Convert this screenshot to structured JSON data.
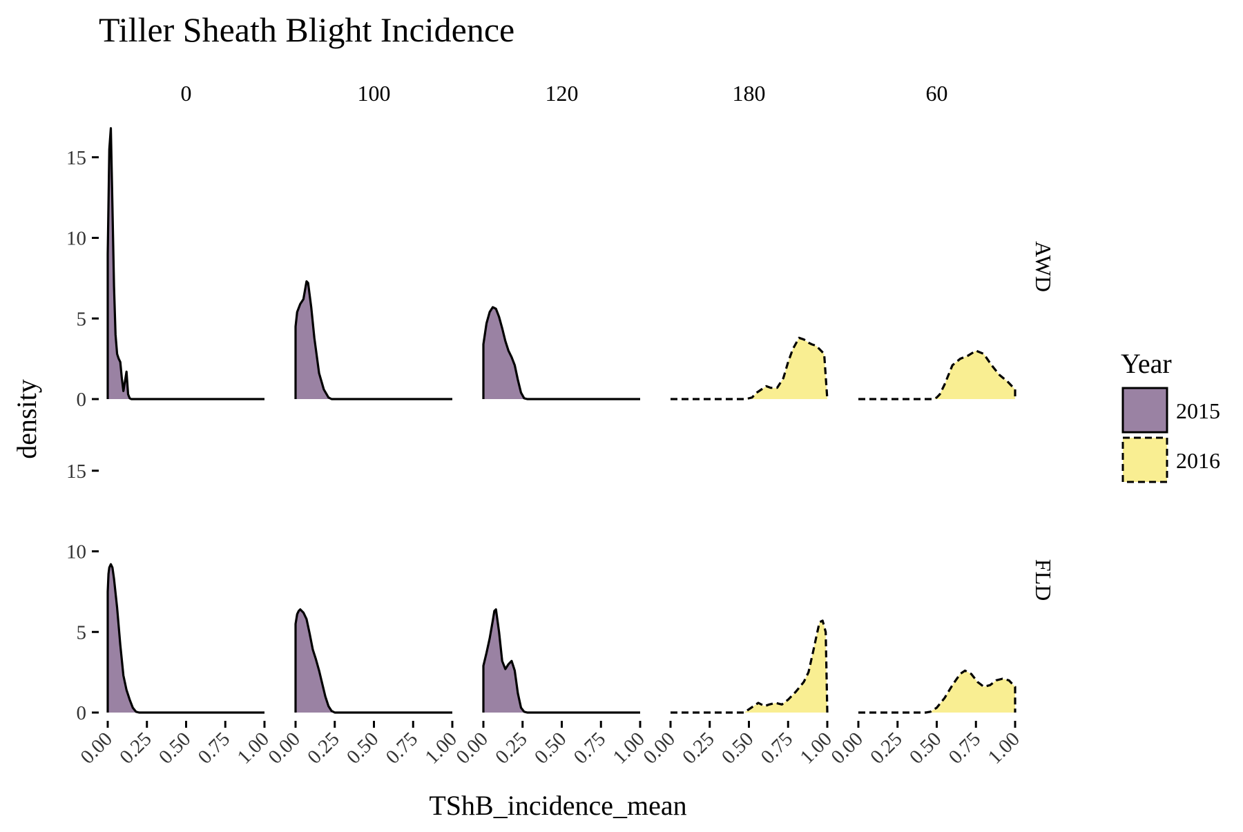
{
  "chart_data": {
    "type": "area",
    "subtype": "density",
    "title": "Tiller Sheath Blight Incidence",
    "xlabel": "TShB_incidence_mean",
    "ylabel": "density",
    "xlim": [
      0,
      1
    ],
    "x_ticks": [
      "0.00",
      "0.25",
      "0.50",
      "0.75",
      "1.00"
    ],
    "ylim": [
      0,
      17
    ],
    "y_ticks": [
      0,
      5,
      10,
      15
    ],
    "grid": false,
    "legend": {
      "title": "Year",
      "position": "right",
      "entries": [
        {
          "label": "2015",
          "color": "#9a82a3",
          "line": "solid"
        },
        {
          "label": "2016",
          "color": "#f9ee92",
          "line": "dashed"
        }
      ]
    },
    "col_facets": [
      "0",
      "100",
      "120",
      "180",
      "60"
    ],
    "row_facets": [
      "AWD",
      "FLD"
    ],
    "panels": [
      {
        "row": "AWD",
        "col": "0",
        "year": "2015",
        "x": [
          0,
          0.01,
          0.02,
          0.03,
          0.04,
          0.05,
          0.06,
          0.07,
          0.08,
          0.09,
          0.1,
          0.11,
          0.12,
          0.13,
          0.14,
          0.15,
          0.16,
          0.2,
          1.0
        ],
        "y": [
          9,
          15.5,
          16.8,
          12,
          7,
          4,
          2.8,
          2.5,
          2.3,
          1.3,
          0.5,
          1.1,
          1.7,
          0.3,
          0.05,
          0,
          0,
          0,
          0
        ]
      },
      {
        "row": "AWD",
        "col": "100",
        "year": "2015",
        "x": [
          0,
          0.01,
          0.03,
          0.05,
          0.07,
          0.08,
          0.1,
          0.12,
          0.15,
          0.18,
          0.21,
          0.23,
          0.26,
          1.0
        ],
        "y": [
          4.5,
          5.4,
          5.9,
          6.2,
          7.3,
          7.2,
          5.7,
          3.8,
          1.6,
          0.6,
          0.1,
          0,
          0,
          0
        ]
      },
      {
        "row": "AWD",
        "col": "120",
        "year": "2015",
        "x": [
          0,
          0.02,
          0.04,
          0.06,
          0.08,
          0.1,
          0.12,
          0.14,
          0.16,
          0.18,
          0.2,
          0.22,
          0.24,
          0.26,
          0.28,
          1.0
        ],
        "y": [
          3.4,
          4.7,
          5.4,
          5.7,
          5.6,
          5.1,
          4.4,
          3.6,
          3.0,
          2.6,
          2.1,
          1.2,
          0.4,
          0.05,
          0,
          0
        ]
      },
      {
        "row": "AWD",
        "col": "180",
        "year": "2016",
        "x": [
          0,
          0.48,
          0.52,
          0.55,
          0.58,
          0.61,
          0.64,
          0.68,
          0.72,
          0.75,
          0.78,
          0.82,
          0.85,
          0.88,
          0.9,
          0.93,
          0.96,
          0.98,
          1.0
        ],
        "y": [
          0,
          0,
          0.1,
          0.4,
          0.6,
          0.8,
          0.7,
          0.7,
          1.3,
          2.3,
          3.1,
          3.8,
          3.7,
          3.5,
          3.4,
          3.3,
          3.0,
          2.8,
          0
        ]
      },
      {
        "row": "AWD",
        "col": "60",
        "year": "2016",
        "x": [
          0,
          0.48,
          0.5,
          0.52,
          0.55,
          0.6,
          0.65,
          0.7,
          0.75,
          0.8,
          0.85,
          0.9,
          0.95,
          1.0
        ],
        "y": [
          0,
          0,
          0.1,
          0.3,
          0.9,
          2.1,
          2.5,
          2.7,
          3.0,
          2.8,
          2.1,
          1.5,
          1.1,
          0.6
        ]
      },
      {
        "row": "FLD",
        "col": "0",
        "year": "2015",
        "x": [
          0,
          0.005,
          0.01,
          0.02,
          0.03,
          0.04,
          0.06,
          0.08,
          0.1,
          0.12,
          0.14,
          0.16,
          0.18,
          0.2,
          1.0
        ],
        "y": [
          7.5,
          8.6,
          9.0,
          9.2,
          9.0,
          8.3,
          6.5,
          4.2,
          2.3,
          1.4,
          0.8,
          0.3,
          0.05,
          0,
          0
        ]
      },
      {
        "row": "FLD",
        "col": "100",
        "year": "2015",
        "x": [
          0,
          0.01,
          0.02,
          0.03,
          0.05,
          0.07,
          0.09,
          0.11,
          0.13,
          0.15,
          0.17,
          0.19,
          0.21,
          0.23,
          0.25,
          1.0
        ],
        "y": [
          5.5,
          6.1,
          6.3,
          6.4,
          6.2,
          5.8,
          4.9,
          3.9,
          3.3,
          2.6,
          1.8,
          1.0,
          0.4,
          0.1,
          0,
          0
        ]
      },
      {
        "row": "FLD",
        "col": "120",
        "year": "2015",
        "x": [
          0,
          0.02,
          0.04,
          0.06,
          0.07,
          0.08,
          0.1,
          0.12,
          0.14,
          0.16,
          0.18,
          0.2,
          0.22,
          0.24,
          0.26,
          0.28,
          1.0
        ],
        "y": [
          2.9,
          3.7,
          4.6,
          5.7,
          6.3,
          6.4,
          5.0,
          3.2,
          2.7,
          3.0,
          3.2,
          2.6,
          1.2,
          0.3,
          0.05,
          0,
          0
        ]
      },
      {
        "row": "FLD",
        "col": "180",
        "year": "2016",
        "x": [
          0,
          0.47,
          0.5,
          0.53,
          0.56,
          0.6,
          0.63,
          0.67,
          0.71,
          0.75,
          0.8,
          0.85,
          0.88,
          0.91,
          0.93,
          0.95,
          0.97,
          0.99,
          1.0
        ],
        "y": [
          0,
          0,
          0.2,
          0.4,
          0.6,
          0.4,
          0.5,
          0.6,
          0.5,
          0.8,
          1.3,
          1.9,
          2.5,
          3.8,
          4.7,
          5.6,
          5.7,
          5.0,
          0
        ]
      },
      {
        "row": "FLD",
        "col": "60",
        "year": "2016",
        "x": [
          0,
          0.43,
          0.46,
          0.5,
          0.55,
          0.6,
          0.65,
          0.68,
          0.72,
          0.76,
          0.8,
          0.84,
          0.88,
          0.92,
          0.96,
          1.0
        ],
        "y": [
          0,
          0,
          0.05,
          0.3,
          0.9,
          1.7,
          2.4,
          2.6,
          2.4,
          1.9,
          1.6,
          1.7,
          2.0,
          2.1,
          2.0,
          1.6
        ]
      }
    ]
  }
}
